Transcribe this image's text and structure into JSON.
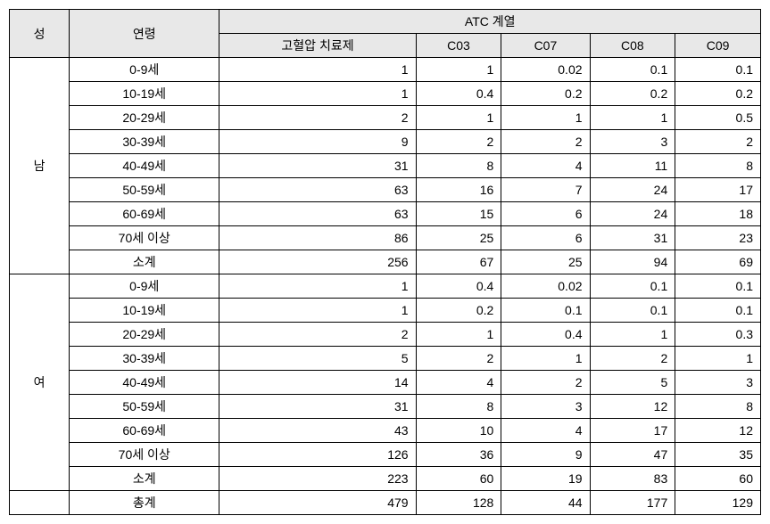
{
  "headers": {
    "gender": "성",
    "age": "연령",
    "atc_group": "ATC 계열",
    "cols": [
      "고혈압 치료제",
      "C03",
      "C07",
      "C08",
      "C09"
    ]
  },
  "genders": [
    "남",
    "여"
  ],
  "age_groups": [
    "0-9세",
    "10-19세",
    "20-29세",
    "30-39세",
    "40-49세",
    "50-59세",
    "60-69세",
    "70세 이상",
    "소계"
  ],
  "total_label": "총계",
  "male_rows": [
    [
      "1",
      "1",
      "0.02",
      "0.1",
      "0.1"
    ],
    [
      "1",
      "0.4",
      "0.2",
      "0.2",
      "0.2"
    ],
    [
      "2",
      "1",
      "1",
      "1",
      "0.5"
    ],
    [
      "9",
      "2",
      "2",
      "3",
      "2"
    ],
    [
      "31",
      "8",
      "4",
      "11",
      "8"
    ],
    [
      "63",
      "16",
      "7",
      "24",
      "17"
    ],
    [
      "63",
      "15",
      "6",
      "24",
      "18"
    ],
    [
      "86",
      "25",
      "6",
      "31",
      "23"
    ],
    [
      "256",
      "67",
      "25",
      "94",
      "69"
    ]
  ],
  "female_rows": [
    [
      "1",
      "0.4",
      "0.02",
      "0.1",
      "0.1"
    ],
    [
      "1",
      "0.2",
      "0.1",
      "0.1",
      "0.1"
    ],
    [
      "2",
      "1",
      "0.4",
      "1",
      "0.3"
    ],
    [
      "5",
      "2",
      "1",
      "2",
      "1"
    ],
    [
      "14",
      "4",
      "2",
      "5",
      "3"
    ],
    [
      "31",
      "8",
      "3",
      "12",
      "8"
    ],
    [
      "43",
      "10",
      "4",
      "17",
      "12"
    ],
    [
      "126",
      "36",
      "9",
      "47",
      "35"
    ],
    [
      "223",
      "60",
      "19",
      "83",
      "60"
    ]
  ],
  "total_row": [
    "479",
    "128",
    "44",
    "177",
    "129"
  ]
}
